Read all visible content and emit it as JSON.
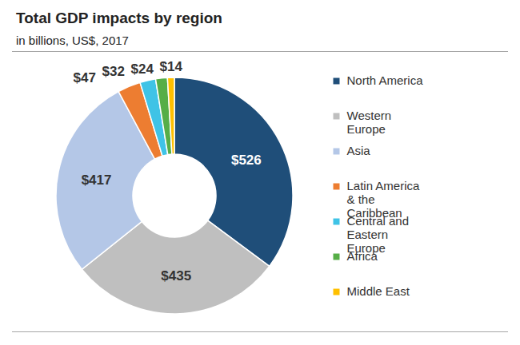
{
  "chart_data": {
    "type": "pie",
    "title": "Total GDP impacts by region",
    "subtitle": "in billions, US$, 2017",
    "categories": [
      "North America",
      "Western Europe",
      "Asia",
      "Latin America & the Caribbean",
      "Central and Eastern Europe",
      "Africa",
      "Middle East"
    ],
    "values": [
      526,
      435,
      417,
      47,
      32,
      24,
      14
    ],
    "value_labels": [
      "$526",
      "$435",
      "$417",
      "$47",
      "$32",
      "$24",
      "$14"
    ],
    "colors": [
      "#1f4e79",
      "#bfbfbf",
      "#b4c7e7",
      "#ed7d31",
      "#3fc3e6",
      "#56ae47",
      "#ffc000"
    ],
    "data_labels": true,
    "legend": "right"
  }
}
